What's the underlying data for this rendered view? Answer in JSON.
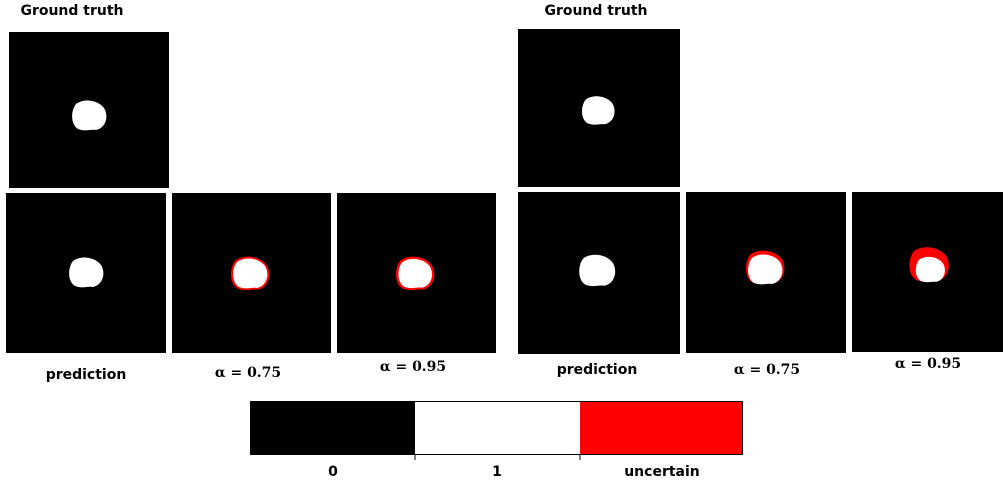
{
  "panels": [
    {
      "title": "Ground truth",
      "captions": [
        "prediction",
        "α = 0.75",
        "α = 0.95"
      ]
    },
    {
      "title": "Ground truth",
      "captions": [
        "prediction",
        "α = 0.75",
        "α = 0.95"
      ]
    }
  ],
  "legend": {
    "labels": [
      "0",
      "1",
      "uncertain"
    ]
  }
}
